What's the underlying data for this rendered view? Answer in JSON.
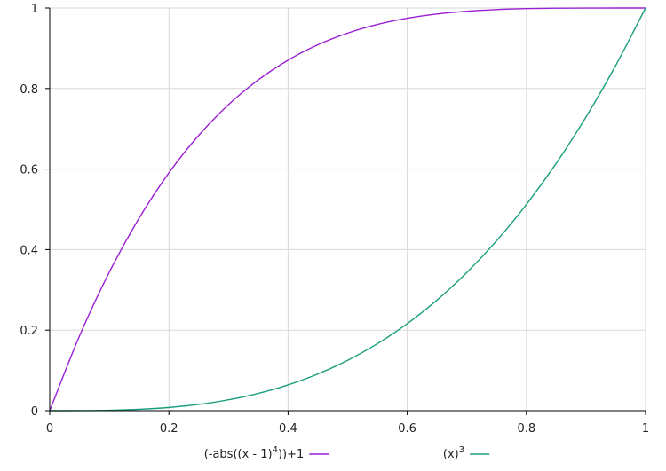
{
  "chart_data": {
    "type": "line",
    "title": "",
    "xlabel": "",
    "ylabel": "",
    "xlim": [
      0,
      1
    ],
    "ylim": [
      0,
      1
    ],
    "grid": true,
    "legend_position": "bottom",
    "x_ticks": [
      "0",
      "0.2",
      "0.4",
      "0.6",
      "0.8",
      "1"
    ],
    "y_ticks": [
      "0",
      "0.2",
      "0.4",
      "0.6",
      "0.8",
      "1"
    ],
    "x": [
      0,
      0.05,
      0.1,
      0.15,
      0.2,
      0.25,
      0.3,
      0.35,
      0.4,
      0.45,
      0.5,
      0.55,
      0.6,
      0.65,
      0.7,
      0.75,
      0.8,
      0.85,
      0.9,
      0.95,
      1
    ],
    "series": [
      {
        "name": "(-abs((x - 1)⁴))+1",
        "legend_main": "(-abs((x - 1)",
        "legend_sup": "4",
        "legend_tail": "))+1",
        "color": "#9b1fd4",
        "values": [
          0,
          0.1855,
          0.3439,
          0.478,
          0.5904,
          0.6836,
          0.7599,
          0.8215,
          0.8704,
          0.9085,
          0.9375,
          0.959,
          0.9744,
          0.985,
          0.9919,
          0.9961,
          0.9984,
          0.9995,
          0.9999,
          1.0,
          1
        ]
      },
      {
        "name": "(x)³",
        "legend_main": "(x)",
        "legend_sup": "3",
        "legend_tail": "",
        "color": "#1a9e7d",
        "values": [
          0,
          0.0001,
          0.001,
          0.0034,
          0.008,
          0.0156,
          0.027,
          0.0429,
          0.064,
          0.0911,
          0.125,
          0.1664,
          0.216,
          0.2746,
          0.343,
          0.4219,
          0.512,
          0.6141,
          0.729,
          0.8574,
          1
        ]
      }
    ]
  },
  "colors": {
    "grid": "#d9d9d9",
    "axis": "#000000",
    "text": "#222222"
  }
}
